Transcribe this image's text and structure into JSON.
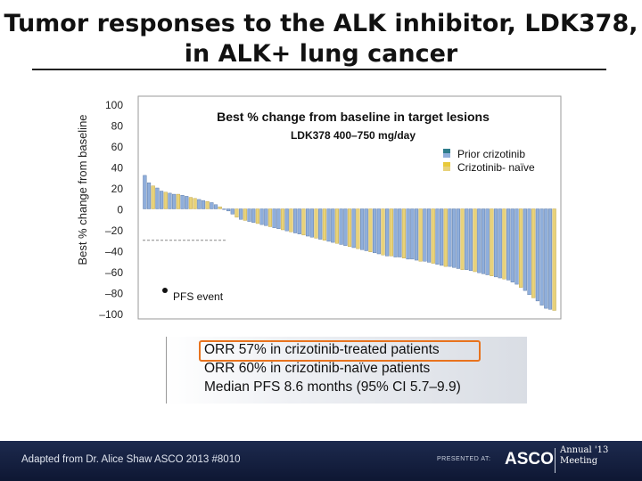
{
  "slide": {
    "title_line1": "Tumor responses to the ALK inhibitor, LDK378,",
    "title_line2": "in ALK+ lung cancer"
  },
  "chart_data": {
    "type": "bar",
    "title": "Best % change from baseline in target lesions",
    "subtitle": "LDK378 400–750 mg/day",
    "ylabel": "Best % change from baseline",
    "ylim": [
      -100,
      100
    ],
    "yticks": [
      "100",
      "80",
      "60",
      "40",
      "20",
      "0",
      "–20",
      "–40",
      "–60",
      "–80",
      "–100"
    ],
    "legend": {
      "placement": "top-right",
      "items": [
        {
          "label": "Prior crizotinib",
          "color_top": "#2e7d8c",
          "color_bottom": "#8faedb"
        },
        {
          "label": "Crizotinib- naïve",
          "color_top": "#e8c93a",
          "color_bottom": "#e8d27a"
        }
      ]
    },
    "reference_line": {
      "y": -30,
      "style": "dashed"
    },
    "annotation": "PFS event",
    "colors": {
      "prior": "#8faedb",
      "naive": "#e8d27a"
    },
    "series": [
      {
        "values": [
          32,
          25,
          22,
          20,
          17,
          16,
          15,
          14,
          14,
          13,
          12,
          11,
          10,
          9,
          8,
          7,
          6,
          4,
          2,
          0,
          -2,
          -5,
          -8,
          -10,
          -11,
          -12,
          -13,
          -14,
          -15,
          -16,
          -17,
          -18,
          -19,
          -20,
          -21,
          -22,
          -23,
          -24,
          -25,
          -26,
          -27,
          -28,
          -29,
          -30,
          -31,
          -32,
          -33,
          -34,
          -35,
          -36,
          -37,
          -38,
          -39,
          -40,
          -41,
          -42,
          -43,
          -44,
          -45,
          -45,
          -46,
          -46,
          -47,
          -48,
          -48,
          -49,
          -50,
          -50,
          -51,
          -52,
          -53,
          -54,
          -55,
          -55,
          -56,
          -57,
          -58,
          -58,
          -59,
          -60,
          -61,
          -62,
          -63,
          -64,
          -65,
          -66,
          -67,
          -68,
          -70,
          -72,
          -75,
          -78,
          -82,
          -85,
          -88,
          -92,
          -95,
          -96,
          -97
        ],
        "groups": [
          "P",
          "P",
          "N",
          "P",
          "P",
          "N",
          "P",
          "P",
          "N",
          "P",
          "P",
          "N",
          "N",
          "P",
          "P",
          "N",
          "P",
          "P",
          "N",
          "P",
          "P",
          "P",
          "N",
          "P",
          "N",
          "P",
          "P",
          "N",
          "P",
          "P",
          "N",
          "P",
          "P",
          "N",
          "P",
          "N",
          "P",
          "P",
          "N",
          "P",
          "P",
          "N",
          "P",
          "N",
          "P",
          "P",
          "N",
          "P",
          "P",
          "N",
          "P",
          "N",
          "P",
          "P",
          "N",
          "P",
          "P",
          "N",
          "P",
          "N",
          "P",
          "P",
          "N",
          "P",
          "P",
          "P",
          "N",
          "P",
          "P",
          "N",
          "P",
          "P",
          "N",
          "P",
          "P",
          "P",
          "N",
          "P",
          "P",
          "N",
          "P",
          "P",
          "P",
          "N",
          "P",
          "P",
          "N",
          "P",
          "P",
          "P",
          "N",
          "P",
          "P",
          "N",
          "P",
          "P",
          "P",
          "P",
          "N"
        ]
      }
    ]
  },
  "summary": {
    "lines": [
      "ORR 57% in crizotinib-treated patients",
      "ORR 60% in crizotinib-naïve patients",
      "Median PFS 8.6 months (95% CI 5.7–9.9)"
    ],
    "highlight_color": "#e8731e"
  },
  "footer": {
    "credit": "Adapted from Dr. Alice Shaw ASCO 2013 #8010",
    "presented_at": "PRESENTED AT:",
    "logo_text": "ASCO",
    "meeting_line1": "Annual '13",
    "meeting_line2": "Meeting"
  }
}
